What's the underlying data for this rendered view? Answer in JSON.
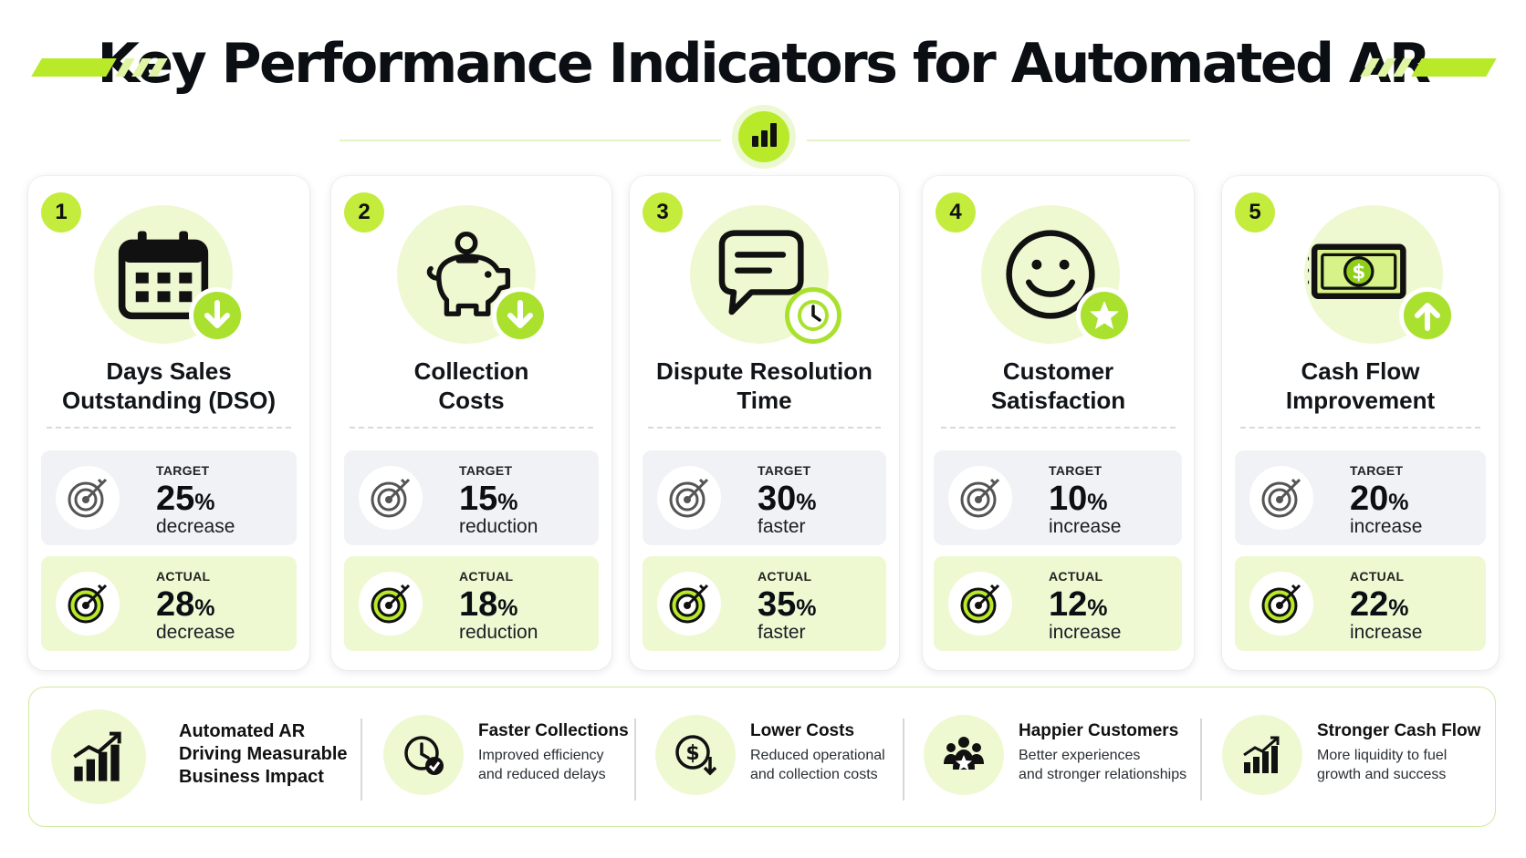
{
  "title": "Key Performance Indicators for Automated AR",
  "colors": {
    "accent": "#b8ea2a",
    "accent_light": "#eef9d2",
    "target_bg": "#f1f2f5",
    "text": "#111418"
  },
  "cards": [
    {
      "number": "1",
      "title_line1": "Days Sales",
      "title_line2": "Outstanding (DSO)",
      "icon": "calendar-icon",
      "badge_icon": "arrow-down-icon",
      "target": {
        "label": "TARGET",
        "value": "25",
        "unit": "%",
        "desc": "decrease"
      },
      "actual": {
        "label": "ACTUAL",
        "value": "28",
        "unit": "%",
        "desc": "decrease"
      }
    },
    {
      "number": "2",
      "title_line1": "Collection",
      "title_line2": "Costs",
      "icon": "piggy-bank-icon",
      "badge_icon": "arrow-down-icon",
      "target": {
        "label": "TARGET",
        "value": "15",
        "unit": "%",
        "desc": "reduction"
      },
      "actual": {
        "label": "ACTUAL",
        "value": "18",
        "unit": "%",
        "desc": "reduction"
      }
    },
    {
      "number": "3",
      "title_line1": "Dispute Resolution",
      "title_line2": "Time",
      "icon": "chat-bubble-icon",
      "badge_icon": "clock-icon",
      "target": {
        "label": "TARGET",
        "value": "30",
        "unit": "%",
        "desc": "faster"
      },
      "actual": {
        "label": "ACTUAL",
        "value": "35",
        "unit": "%",
        "desc": "faster"
      }
    },
    {
      "number": "4",
      "title_line1": "Customer",
      "title_line2": "Satisfaction",
      "icon": "smiley-face-icon",
      "badge_icon": "star-icon",
      "target": {
        "label": "TARGET",
        "value": "10",
        "unit": "%",
        "desc": "increase"
      },
      "actual": {
        "label": "ACTUAL",
        "value": "12",
        "unit": "%",
        "desc": "increase"
      }
    },
    {
      "number": "5",
      "title_line1": "Cash Flow",
      "title_line2": "Improvement",
      "icon": "cash-bill-icon",
      "badge_icon": "arrow-up-icon",
      "target": {
        "label": "TARGET",
        "value": "20",
        "unit": "%",
        "desc": "increase"
      },
      "actual": {
        "label": "ACTUAL",
        "value": "22",
        "unit": "%",
        "desc": "increase"
      }
    }
  ],
  "bottom": {
    "lead_line1": "Automated AR",
    "lead_line2": "Driving Measurable",
    "lead_line3": "Business Impact",
    "items": [
      {
        "title": "Faster Collections",
        "desc_line1": "Improved efficiency",
        "desc_line2": "and reduced delays",
        "icon": "clock-check-icon"
      },
      {
        "title": "Lower Costs",
        "desc_line1": "Reduced operational",
        "desc_line2": "and collection costs",
        "icon": "dollar-down-icon"
      },
      {
        "title": "Happier Customers",
        "desc_line1": "Better experiences",
        "desc_line2": "and stronger relationships",
        "icon": "people-star-icon"
      },
      {
        "title": "Stronger Cash Flow",
        "desc_line1": "More liquidity to fuel",
        "desc_line2": "growth and success",
        "icon": "growth-chart-icon"
      }
    ]
  }
}
